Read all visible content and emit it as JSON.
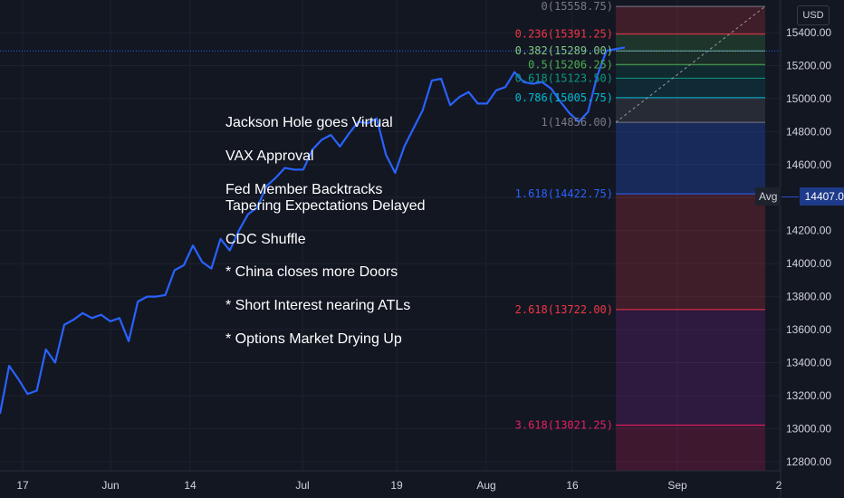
{
  "currency": "USD",
  "avg_label": "Avg",
  "avg_value": "14407.00",
  "x_ticks": [
    "17",
    "Jun",
    "14",
    "Jul",
    "19",
    "Aug",
    "16",
    "Sep",
    "2"
  ],
  "y_ticks": [
    "15400.00",
    "15200.00",
    "15000.00",
    "14800.00",
    "14600.00",
    "14400.00",
    "14200.00",
    "14000.00",
    "13800.00",
    "13600.00",
    "13400.00",
    "13200.00",
    "13000.00",
    "12800.00"
  ],
  "annotations": [
    "Jackson Hole goes Virtual",
    "VAX Approval",
    "Fed Member Backtracks",
    "Tapering Expectations Delayed",
    "CDC Shuffle",
    "* China closes more Doors",
    "* Short Interest nearing ATLs",
    "* Options Market Drying Up"
  ],
  "fib_levels": [
    {
      "label": "0(15558.75)",
      "value": 15558.75,
      "color": "#787b86",
      "fill": "#f2364533"
    },
    {
      "label": "0.236(15391.25)",
      "value": 15391.25,
      "color": "#f23645",
      "fill": "#4caf5033"
    },
    {
      "label": "0.382(15289.00)",
      "value": 15289.0,
      "color": "#81c784",
      "fill": "#4caf5026"
    },
    {
      "label": "0.5(15206.25)",
      "value": 15206.25,
      "color": "#4caf50",
      "fill": "#08998126"
    },
    {
      "label": "0.618(15123.50)",
      "value": 15123.5,
      "color": "#089981",
      "fill": "#0097a726"
    },
    {
      "label": "0.786(15005.75)",
      "value": 15005.75,
      "color": "#00bcd4",
      "fill": "#787b8633"
    },
    {
      "label": "1(14856.00)",
      "value": 14856.0,
      "color": "#787b86",
      "fill": "#2962ff40"
    },
    {
      "label": "1.618(14422.75)",
      "value": 14422.75,
      "color": "#2962ff",
      "fill": "#f2364533"
    },
    {
      "label": "2.618(13722.00)",
      "value": 13722.0,
      "color": "#f23645",
      "fill": "#9c27b033"
    },
    {
      "label": "3.618(13021.25)",
      "value": 13021.25,
      "color": "#e91e63",
      "fill": "#e91e6333"
    }
  ],
  "chart_data": {
    "type": "line",
    "y_range": [
      12750,
      15600
    ],
    "x_tick_labels": [
      "17",
      "Jun",
      "14",
      "Jul",
      "19",
      "Aug",
      "16",
      "Sep",
      "2"
    ],
    "series": [
      {
        "color": "#2962ff",
        "values": [
          13090,
          13380,
          13300,
          13210,
          13230,
          13480,
          13400,
          13630,
          13660,
          13700,
          13670,
          13690,
          13650,
          13670,
          13530,
          13770,
          13800,
          13800,
          13810,
          13960,
          13990,
          14110,
          14010,
          13970,
          14150,
          14080,
          14200,
          14300,
          14340,
          14470,
          14520,
          14580,
          14570,
          14570,
          14690,
          14750,
          14780,
          14710,
          14790,
          14860,
          14850,
          14880,
          14660,
          14550,
          14710,
          14820,
          14930,
          15110,
          15120,
          14960,
          15010,
          15040,
          14970,
          14970,
          15050,
          15070,
          15160,
          15100,
          15090,
          15100,
          15060,
          14980,
          14910,
          14860,
          14920,
          15140,
          15290,
          15300,
          15310
        ]
      }
    ],
    "last_value": 15289.0
  }
}
